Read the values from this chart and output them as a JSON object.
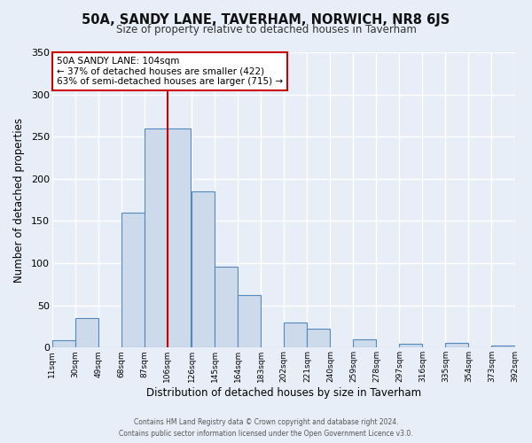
{
  "title": "50A, SANDY LANE, TAVERHAM, NORWICH, NR8 6JS",
  "subtitle": "Size of property relative to detached houses in Taverham",
  "xlabel": "Distribution of detached houses by size in Taverham",
  "ylabel": "Number of detached properties",
  "bar_color": "#ccdaeb",
  "bar_edge_color": "#5588bb",
  "background_color": "#e8eef8",
  "plot_bg_color": "#e8eef8",
  "grid_color": "#ffffff",
  "vline_color": "#cc0000",
  "vline_x": 106,
  "annotation_title": "50A SANDY LANE: 104sqm",
  "annotation_line1": "← 37% of detached houses are smaller (422)",
  "annotation_line2": "63% of semi-detached houses are larger (715) →",
  "annotation_box_color": "#ffffff",
  "annotation_box_edge": "#cc0000",
  "bin_left_edges": [
    11,
    30,
    49,
    68,
    87,
    106,
    126,
    145,
    164,
    183,
    202,
    221,
    240,
    259,
    278,
    297,
    316,
    335,
    354,
    373
  ],
  "bin_labels": [
    "11sqm",
    "30sqm",
    "49sqm",
    "68sqm",
    "87sqm",
    "106sqm",
    "126sqm",
    "145sqm",
    "164sqm",
    "183sqm",
    "202sqm",
    "221sqm",
    "240sqm",
    "259sqm",
    "278sqm",
    "297sqm",
    "316sqm",
    "335sqm",
    "354sqm",
    "373sqm",
    "392sqm"
  ],
  "bar_heights": [
    9,
    35,
    0,
    160,
    260,
    260,
    185,
    96,
    62,
    0,
    30,
    22,
    0,
    10,
    0,
    5,
    0,
    6,
    0,
    2
  ],
  "ylim": [
    0,
    350
  ],
  "yticks": [
    0,
    50,
    100,
    150,
    200,
    250,
    300,
    350
  ],
  "footer_line1": "Contains HM Land Registry data © Crown copyright and database right 2024.",
  "footer_line2": "Contains public sector information licensed under the Open Government Licence v3.0."
}
